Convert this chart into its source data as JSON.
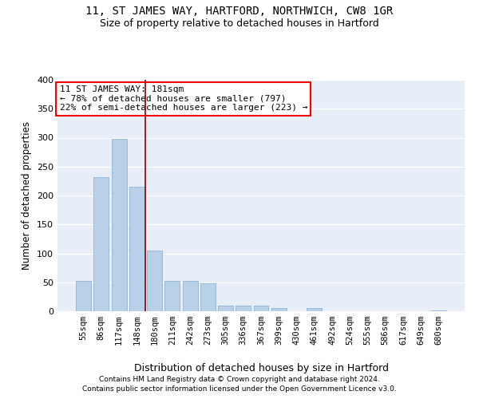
{
  "title": "11, ST JAMES WAY, HARTFORD, NORTHWICH, CW8 1GR",
  "subtitle": "Size of property relative to detached houses in Hartford",
  "xlabel": "Distribution of detached houses by size in Hartford",
  "ylabel": "Number of detached properties",
  "categories": [
    "55sqm",
    "86sqm",
    "117sqm",
    "148sqm",
    "180sqm",
    "211sqm",
    "242sqm",
    "273sqm",
    "305sqm",
    "336sqm",
    "367sqm",
    "399sqm",
    "430sqm",
    "461sqm",
    "492sqm",
    "524sqm",
    "555sqm",
    "586sqm",
    "617sqm",
    "649sqm",
    "680sqm"
  ],
  "values": [
    53,
    232,
    298,
    215,
    105,
    52,
    52,
    48,
    10,
    10,
    10,
    5,
    0,
    5,
    0,
    0,
    0,
    0,
    0,
    0,
    2
  ],
  "bar_color": "#b8d0e8",
  "bar_edge_color": "#8fb4d4",
  "highlight_line_color": "#8b0000",
  "annotation_text": "11 ST JAMES WAY: 181sqm\n← 78% of detached houses are smaller (797)\n22% of semi-detached houses are larger (223) →",
  "annotation_box_color": "white",
  "annotation_box_edge_color": "red",
  "ylim": [
    0,
    400
  ],
  "yticks": [
    0,
    50,
    100,
    150,
    200,
    250,
    300,
    350,
    400
  ],
  "background_color": "#e8eef8",
  "grid_color": "white",
  "footer_line1": "Contains HM Land Registry data © Crown copyright and database right 2024.",
  "footer_line2": "Contains public sector information licensed under the Open Government Licence v3.0.",
  "title_fontsize": 10,
  "subtitle_fontsize": 9,
  "xlabel_fontsize": 9,
  "ylabel_fontsize": 8.5,
  "annotation_fontsize": 8,
  "tick_fontsize": 7.5,
  "ytick_fontsize": 8,
  "footer_fontsize": 6.5
}
